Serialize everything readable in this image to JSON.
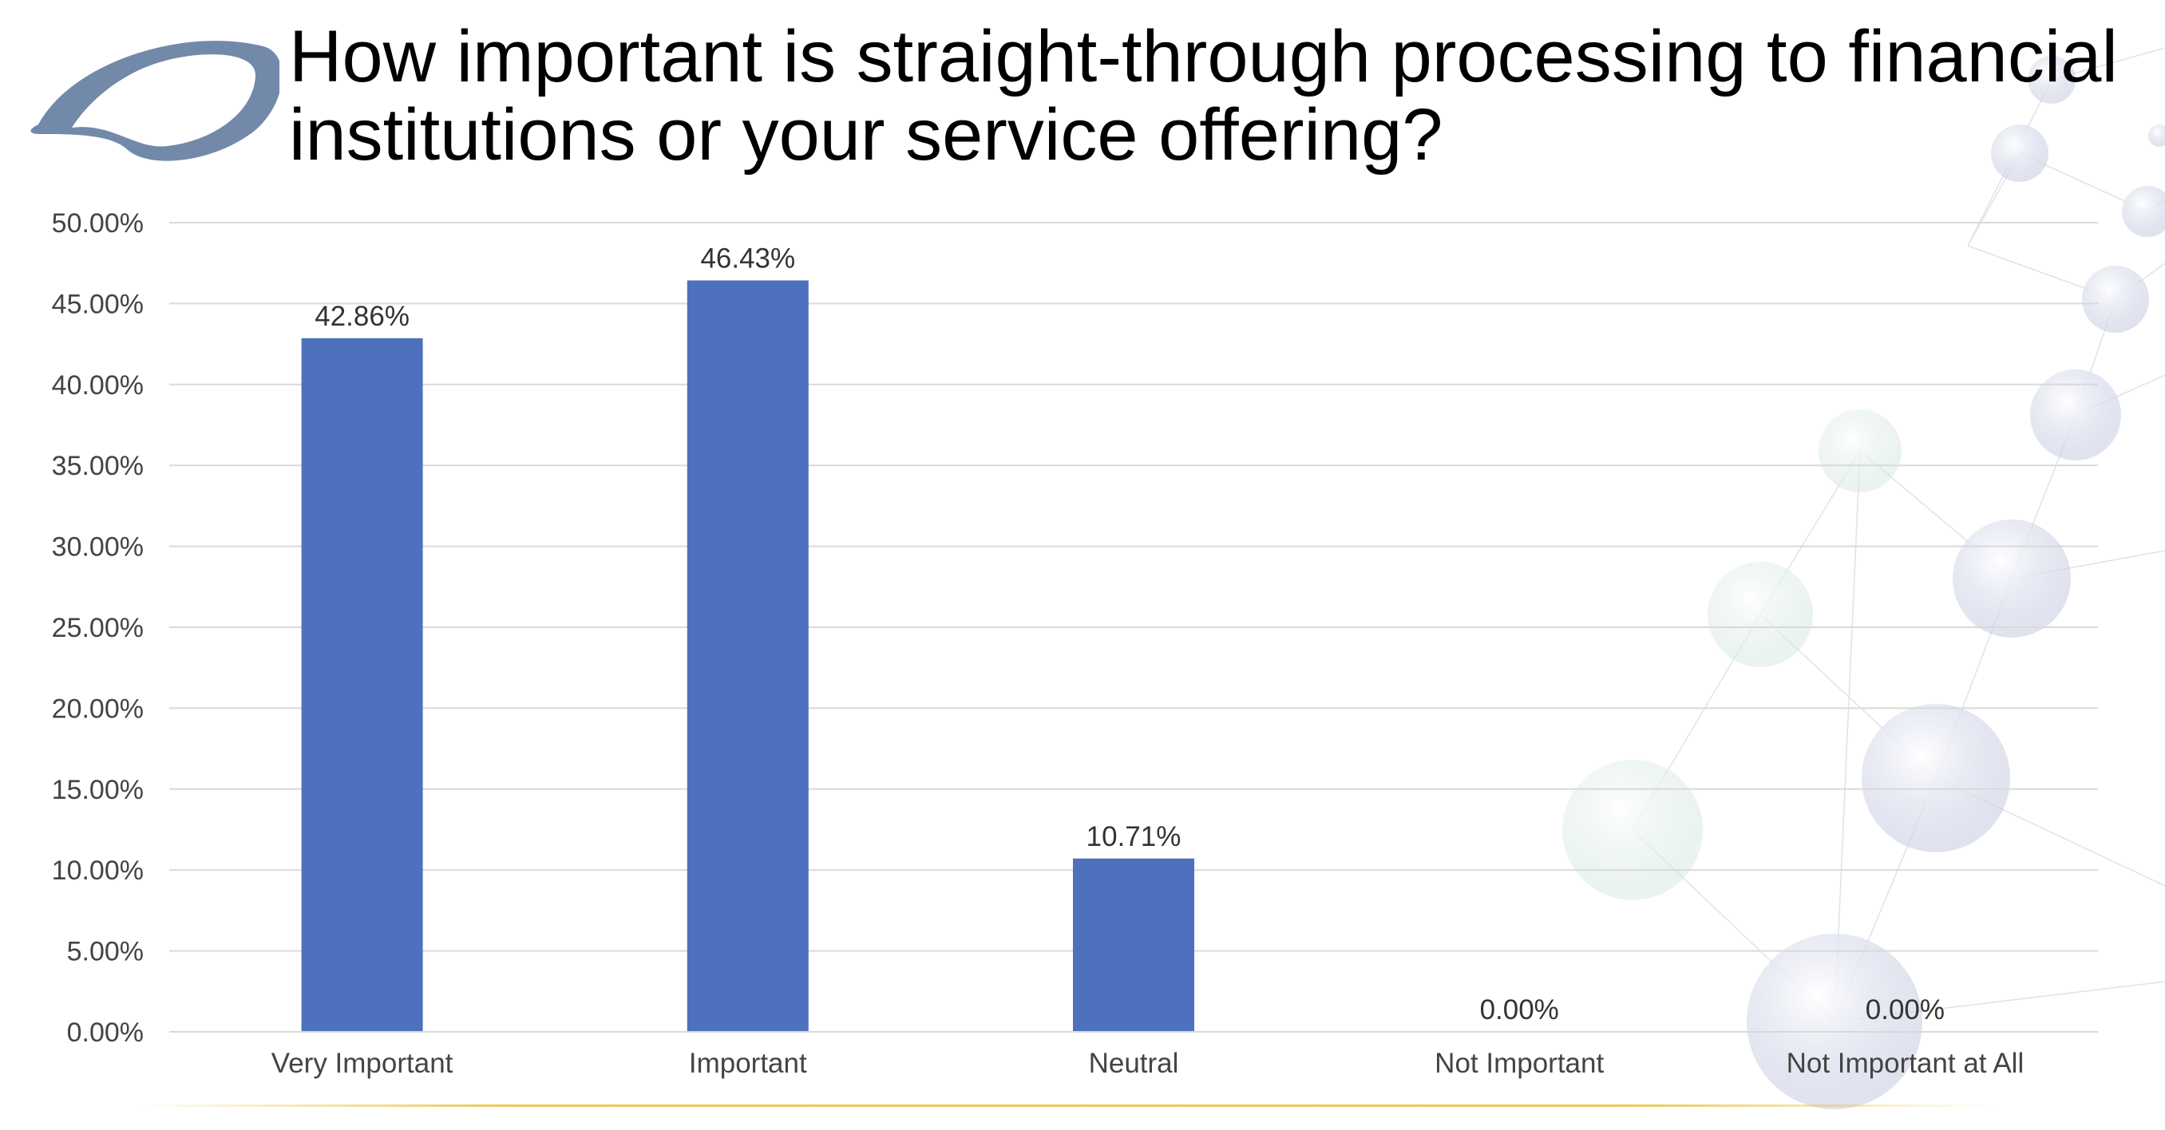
{
  "slide": {
    "title": "How important is straight-through processing to financial institutions or your service offering?",
    "logo_icon": "oval-swoosh-logo-icon",
    "background_icon": "molecule-network-icon"
  },
  "colors": {
    "bar": "#4E71BD",
    "grid": "#D9D9D9",
    "logo": "#7389A9",
    "accent_line": "#E8BE3C"
  },
  "chart_data": {
    "type": "bar",
    "title": "",
    "xlabel": "",
    "ylabel": "",
    "categories": [
      "Very Important",
      "Important",
      "Neutral",
      "Not Important",
      "Not Important at All"
    ],
    "values": [
      42.86,
      46.43,
      10.71,
      0.0,
      0.0
    ],
    "data_labels": [
      "42.86%",
      "46.43%",
      "10.71%",
      "0.00%",
      "0.00%"
    ],
    "ylim": [
      0,
      50
    ],
    "yticks": [
      0,
      5,
      10,
      15,
      20,
      25,
      30,
      35,
      40,
      45,
      50
    ],
    "ytick_labels": [
      "0.00%",
      "5.00%",
      "10.00%",
      "15.00%",
      "20.00%",
      "25.00%",
      "30.00%",
      "35.00%",
      "40.00%",
      "45.00%",
      "50.00%"
    ],
    "grid": true,
    "legend": "none"
  }
}
